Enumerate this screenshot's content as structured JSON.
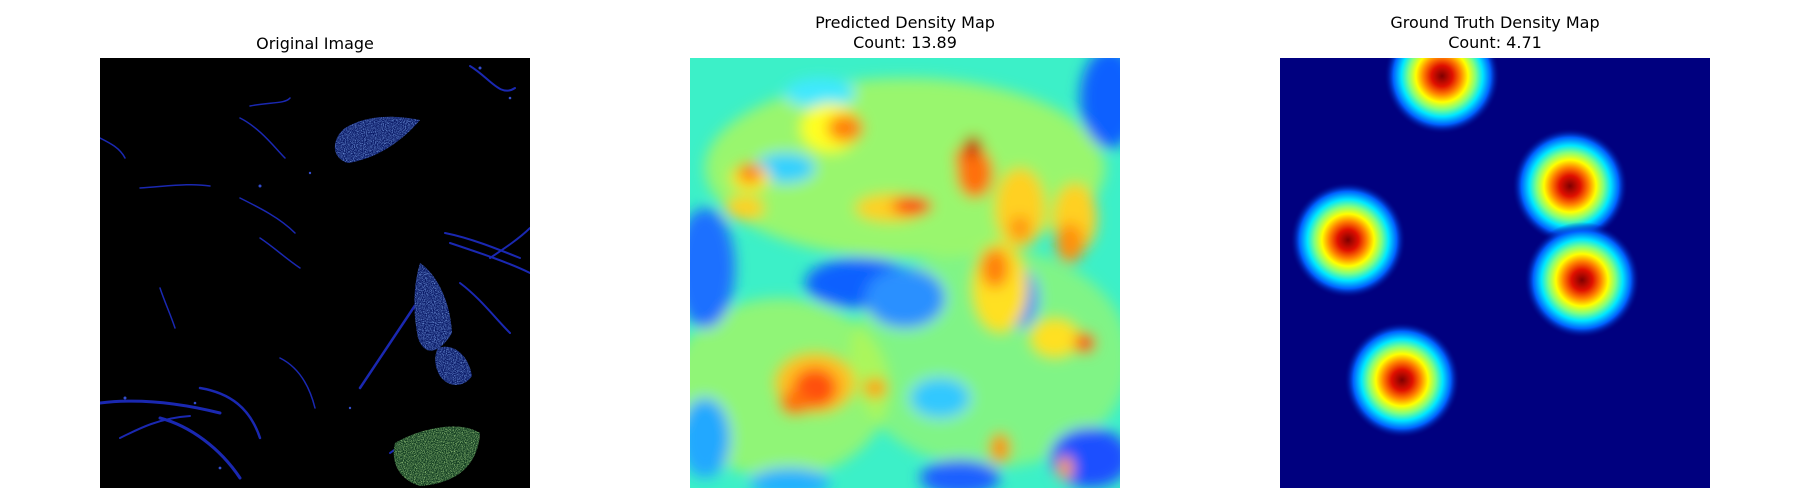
{
  "panels": [
    {
      "title": "Original Image",
      "subtitle": ""
    },
    {
      "title": "Predicted Density Map",
      "subtitle": "Count: 13.89"
    },
    {
      "title": "Ground Truth Density Map",
      "subtitle": "Count: 4.71"
    }
  ],
  "colormap": {
    "name": "jet",
    "stops": [
      "#00007f",
      "#0000ff",
      "#00ffff",
      "#ffff00",
      "#ff0000",
      "#7f0000"
    ]
  },
  "original_image_palette": {
    "background": "#000000",
    "edge_colors": [
      "#1f2fd0",
      "#3a6ef0",
      "#80c8e0",
      "#3fa85a",
      "#c8e890"
    ]
  }
}
